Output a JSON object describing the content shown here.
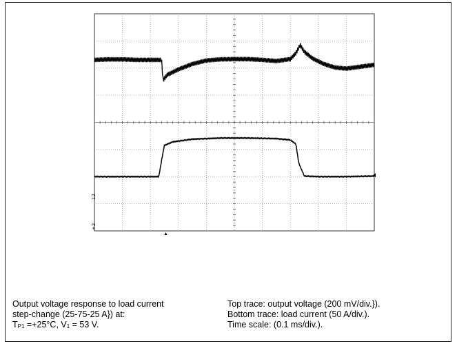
{
  "chart_data": {
    "type": "line",
    "x_unit": "ms",
    "grid": true,
    "x_divisions": 10,
    "y_divisions": 8,
    "series": [
      {
        "name": "output voltage",
        "x": [
          0,
          0.05,
          0.1,
          0.15,
          0.2,
          0.24,
          0.245,
          0.26,
          0.3,
          0.35,
          0.4,
          0.45,
          0.5,
          0.55,
          0.6,
          0.65,
          0.7,
          0.72,
          0.735,
          0.75,
          0.78,
          0.82,
          0.86,
          0.9,
          0.95,
          1.0
        ],
        "y": [
          2.3,
          2.32,
          2.32,
          2.3,
          2.3,
          2.3,
          1.55,
          1.75,
          1.95,
          2.15,
          2.28,
          2.32,
          2.33,
          2.33,
          2.3,
          2.26,
          2.33,
          2.55,
          2.85,
          2.6,
          2.35,
          2.15,
          2.02,
          1.98,
          2.05,
          2.12
        ],
        "y_unit": "div",
        "scale": "200 mV/div."
      },
      {
        "name": "load current",
        "x": [
          0,
          0.2,
          0.23,
          0.24,
          0.25,
          0.28,
          0.35,
          0.45,
          0.55,
          0.65,
          0.7,
          0.72,
          0.73,
          0.75,
          0.8,
          0.9,
          1.0
        ],
        "y": [
          -2.0,
          -2.0,
          -2.0,
          -1.4,
          -0.85,
          -0.72,
          -0.62,
          -0.58,
          -0.58,
          -0.6,
          -0.65,
          -0.8,
          -1.5,
          -1.98,
          -2.0,
          -2.0,
          -1.98
        ],
        "y_unit": "div",
        "scale": "50 A/div."
      }
    ]
  },
  "channel_labels": [
    "12",
    "+2"
  ],
  "caption": {
    "left_line1": "Output voltage response to load current",
    "left_line2": "step-change (25-75-25 A}) at:",
    "left_t": "T",
    "left_t_sub": "P1",
    "left_t_rest": " =+25°C, V",
    "left_v_sub": "1",
    "left_v_rest": " = 53 V.",
    "right_line1": "Top trace: output voltage (200 mV/div.}).",
    "right_line2": "Bottom trace: load current (50 A/div.).",
    "right_line3": "Time scale: (0.1 ms/div.)."
  }
}
